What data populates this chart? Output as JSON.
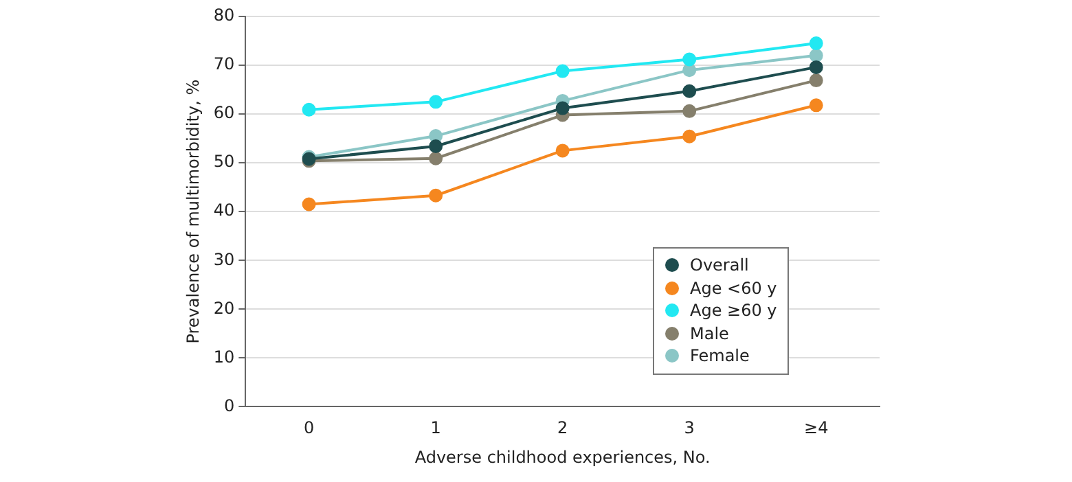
{
  "chart_data": {
    "type": "line",
    "xlabel": "Adverse childhood experiences, No.",
    "ylabel": "Prevalence of multimorbidity, %",
    "categories": [
      "0",
      "1",
      "2",
      "3",
      "≥4"
    ],
    "series": [
      {
        "name": "Overall",
        "color": "#1e4d4f",
        "values": [
          50.8,
          53.4,
          61.2,
          64.7,
          69.6
        ]
      },
      {
        "name": "Age <60 y",
        "color": "#f5871f",
        "values": [
          41.5,
          43.3,
          52.5,
          55.4,
          61.8
        ]
      },
      {
        "name": "Age ≥60 y",
        "color": "#22e8f2",
        "values": [
          60.9,
          62.5,
          68.8,
          71.2,
          74.5
        ]
      },
      {
        "name": "Male",
        "color": "#857f6c",
        "values": [
          50.4,
          50.9,
          59.8,
          60.6,
          66.9
        ]
      },
      {
        "name": "Female",
        "color": "#8bc6c6",
        "values": [
          51.2,
          55.5,
          62.7,
          69.0,
          72.0
        ]
      }
    ],
    "ylim": [
      0,
      80
    ],
    "yticks": [
      0,
      10,
      20,
      30,
      40,
      50,
      60,
      70,
      80
    ],
    "grid": "y",
    "legend": "bottom right",
    "marker": "circle",
    "line_style": "solid"
  }
}
